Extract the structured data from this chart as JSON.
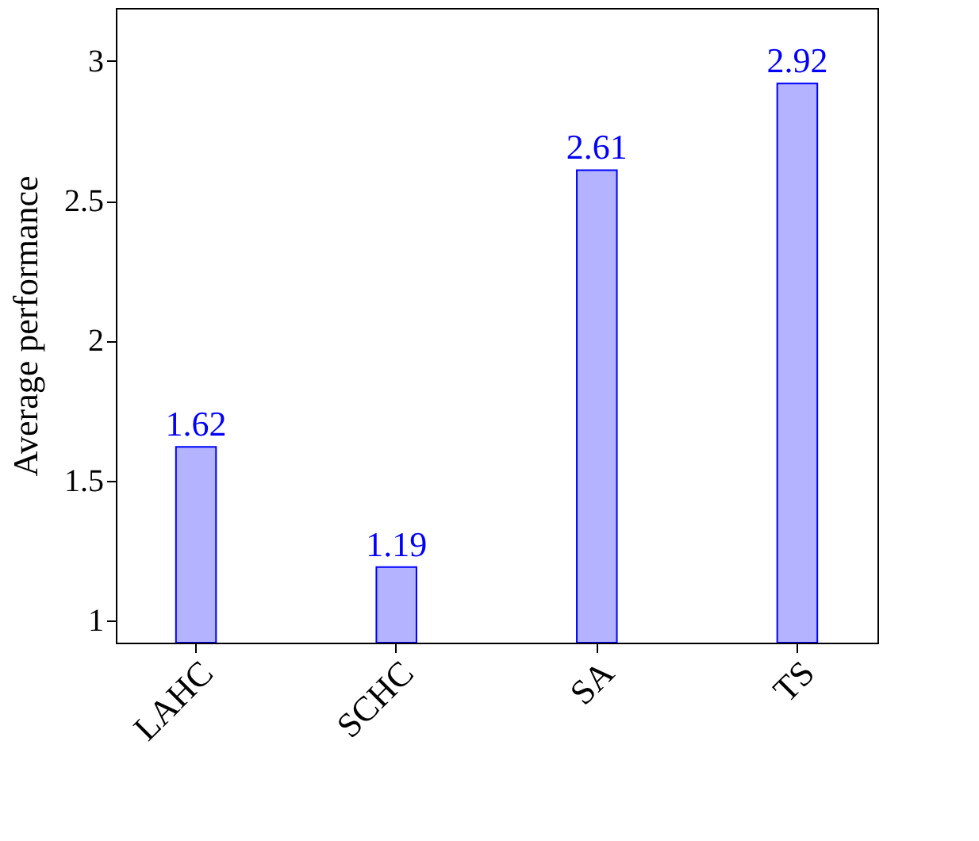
{
  "chart_data": {
    "type": "bar",
    "ylabel": "Average performance",
    "categories": [
      "LAHC",
      "SCHC",
      "SA",
      "TS"
    ],
    "series": [
      {
        "color": "#b3b3ff",
        "values": [
          1.62,
          1.19,
          2.61,
          2.92
        ]
      }
    ],
    "ylim": [
      0.92,
      3.19
    ],
    "yticks": [
      1,
      1.5,
      2,
      2.5,
      3
    ],
    "grid": false,
    "data_labels": true
  }
}
